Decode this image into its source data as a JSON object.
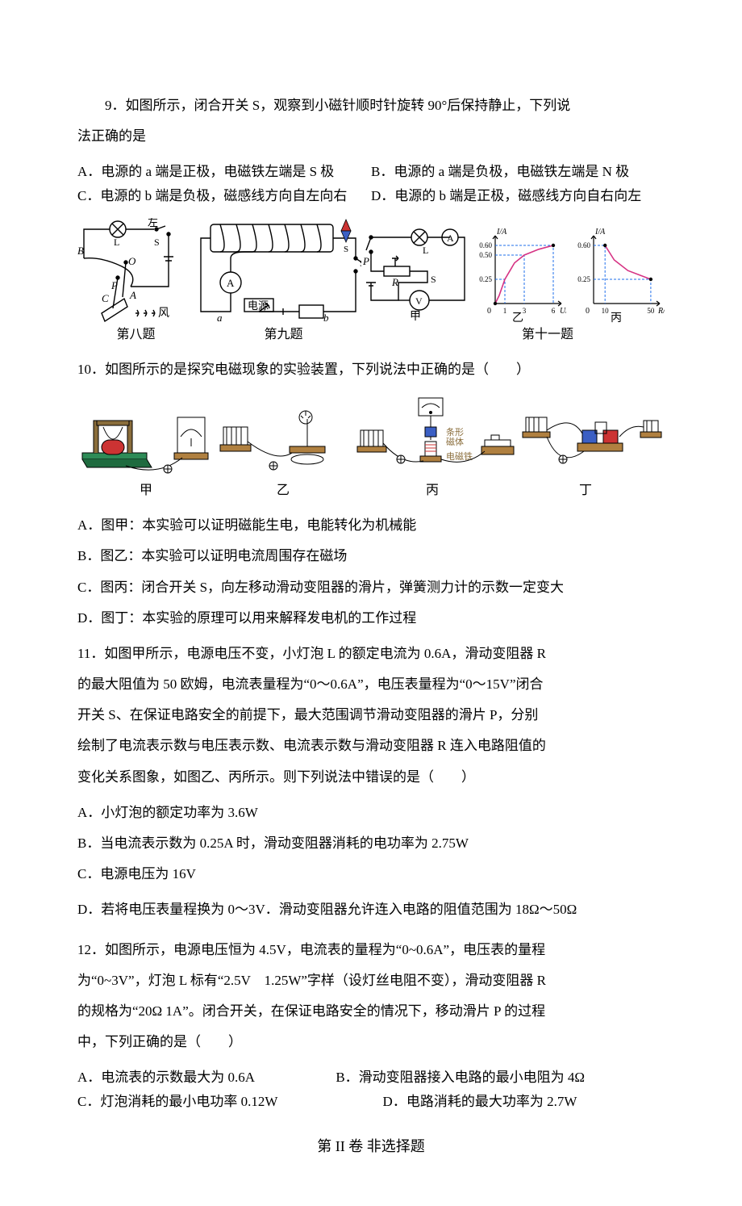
{
  "q9": {
    "stem_l1": "9．如图所示，闭合开关 S，观察到小磁针顺时针旋转 90°后保持静止，下列说",
    "stem_l2": "法正确的是",
    "optA": "A．电源的 a 端是正极，电磁铁左端是 S 极",
    "optB": "B．电源的 a 端是负极，电磁铁左端是 N 极",
    "optC": "C．电源的 b 端是负极，磁感线方向自左向右",
    "optD": "D．电源的 b 端是正极，磁感线方向自右向左"
  },
  "fig_caps": {
    "c1": "第八题",
    "c2": "第九题",
    "c3": "第十一题"
  },
  "q10": {
    "stem": "10．如图所示的是探究电磁现象的实验装置，下列说法中正确的是（　　）",
    "cap1": "甲",
    "cap2": "乙",
    "cap3": "丙",
    "cap4": "丁",
    "optA": "A．图甲：本实验可以证明磁能生电，电能转化为机械能",
    "optB": "B．图乙：本实验可以证明电流周围存在磁场",
    "optC": "C．图丙：闭合开关 S，向左移动滑动变阻器的滑片，弹簧测力计的示数一定变大",
    "optD": "D．图丁：本实验的原理可以用来解释发电机的工作过程"
  },
  "q11": {
    "l1": "11．如图甲所示，电源电压不变，小灯泡 L 的额定电流为 0.6A，滑动变阻器 R",
    "l2": "的最大阻值为 50 欧姆，电流表量程为“0～0.6A”，电压表量程为“0～15V”闭合",
    "l3": "开关 S、在保证电路安全的前提下，最大范围调节滑动变阻器的滑片 P，分别",
    "l4": "绘制了电流表示数与电压表示数、电流表示数与滑动变阻器 R 连入电路阻值的",
    "l5": "变化关系图象，如图乙、丙所示。则下列说法中错误的是（　　）",
    "optA": "A．小灯泡的额定功率为 3.6W",
    "optB": "B．当电流表示数为 0.25A 时，滑动变阻器消耗的电功率为 2.75W",
    "optC": "C．电源电压为 16V",
    "optD": "D．若将电压表量程换为 0～3V．滑动变阻器允许连入电路的阻值范围为 18Ω～50Ω"
  },
  "q12": {
    "l1": "12．如图所示，电源电压恒为 4.5V，电流表的量程为“0~0.6A”，电压表的量程",
    "l2": "为“0~3V”，灯泡 L 标有“2.5V　1.25W”字样（设灯丝电阻不变），滑动变阻器 R",
    "l3": "的规格为“20Ω 1A”。闭合开关，在保证电路安全的情况下，移动滑片 P 的过程",
    "l4": "中，下列正确的是（　　）",
    "optA": "A．电流表的示数最大为 0.6A",
    "optB": "B．滑动变阻器接入电路的最小电阻为 4Ω",
    "optC": "C．灯泡消耗的最小电功率 0.12W",
    "optD": "D．电路消耗的最大功率为 2.7W"
  },
  "section2": "第 II 卷  非选择题",
  "fig8": {
    "labels": {
      "L": "L",
      "S": "S",
      "B": "B",
      "O": "O",
      "P": "P",
      "C": "C",
      "A": "A",
      "left": "左",
      "wind": "风"
    },
    "stroke": "#000000"
  },
  "fig9": {
    "labels": {
      "N": "N",
      "S": "S",
      "S2": "S",
      "a": "a",
      "b": "b",
      "A": "A",
      "dianyuan": "电源"
    },
    "stroke": "#000000"
  },
  "fig11a": {
    "labels": {
      "L": "L",
      "P": "P",
      "R": "R",
      "S": "S",
      "A": "A",
      "V": "V",
      "jia": "甲"
    },
    "stroke": "#000000"
  },
  "chart_yi": {
    "title": "乙",
    "ylabel": "I/A",
    "xlabel": "U/V",
    "xlim": [
      0,
      6.5
    ],
    "ylim": [
      0,
      0.65
    ],
    "yticks": [
      0.25,
      0.5,
      0.6
    ],
    "xticks": [
      1,
      3,
      6
    ],
    "bg": "#ffffff",
    "axis_color": "#000000",
    "curve_color": "#d63384",
    "dash_color": "#1f6feb",
    "points": [
      [
        0,
        0
      ],
      [
        0.4,
        0.08
      ],
      [
        1,
        0.25
      ],
      [
        2,
        0.42
      ],
      [
        3,
        0.5
      ],
      [
        4.5,
        0.56
      ],
      [
        6,
        0.6
      ]
    ]
  },
  "chart_bing": {
    "title": "丙",
    "ylabel": "I/A",
    "xlabel": "R/Ω",
    "xlim": [
      0,
      55
    ],
    "ylim": [
      0,
      0.65
    ],
    "yticks": [
      0.25,
      0.6
    ],
    "xticks": [
      10,
      50
    ],
    "bg": "#ffffff",
    "axis_color": "#000000",
    "curve_color": "#d63384",
    "dash_color": "#1f6feb",
    "points": [
      [
        10,
        0.6
      ],
      [
        18,
        0.45
      ],
      [
        30,
        0.34
      ],
      [
        50,
        0.25
      ]
    ]
  },
  "fig10_colors": {
    "base_green": "#2e8b57",
    "base_brown": "#b08040",
    "coil_red": "#cc3333",
    "magnet_blue": "#3b5fc4",
    "magnet_red": "#cc3333",
    "meter_face": "#ffffff",
    "stroke": "#000000",
    "label_color": "#8a6d3b"
  }
}
